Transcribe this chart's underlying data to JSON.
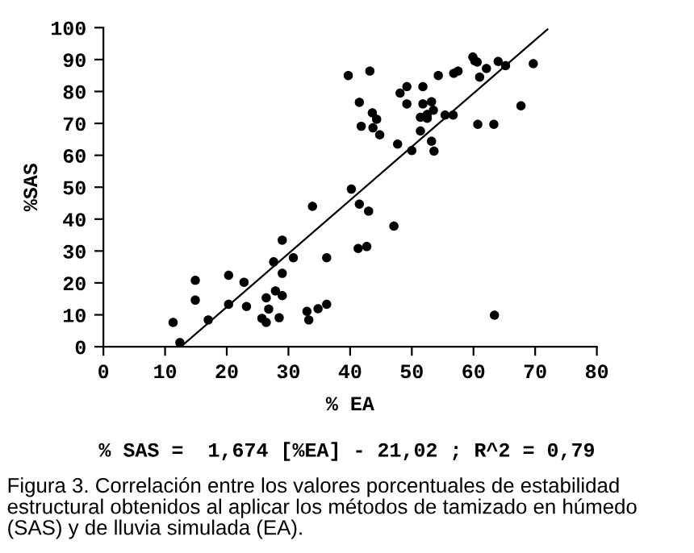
{
  "chart_data": {
    "type": "scatter",
    "xlabel": "% EA",
    "ylabel": "%SAS",
    "xlim": [
      0,
      80
    ],
    "xticks": [
      0,
      10,
      20,
      30,
      40,
      50,
      60,
      70,
      80
    ],
    "ylim": [
      0,
      100
    ],
    "yticks": [
      0,
      10,
      20,
      30,
      40,
      50,
      60,
      70,
      80,
      90,
      100
    ],
    "grid": false,
    "legend": false,
    "marker": "circle",
    "series": [
      {
        "color": "#000000",
        "x": [
          11.3,
          12.4,
          14.9,
          14.9,
          17.0,
          20.3,
          20.3,
          22.8,
          23.2,
          25.7,
          26.4,
          26.4,
          26.8,
          27.6,
          27.9,
          28.5,
          29.0,
          29.0,
          29.0,
          30.8,
          33.0,
          33.3,
          33.9,
          34.8,
          36.2,
          36.2,
          39.7,
          40.2,
          41.5,
          41.5,
          41.3,
          41.8,
          42.7,
          43.0,
          43.2,
          43.6,
          43.7,
          44.3,
          44.8,
          47.1,
          47.7,
          48.1,
          49.2,
          49.2,
          50.0,
          51.4,
          51.4,
          51.8,
          51.8,
          52.5,
          52.5,
          53.2,
          53.5,
          53.2,
          53.6,
          54.3,
          55.4,
          56.7,
          56.8,
          57.5,
          59.9,
          60.2,
          60.6,
          60.7,
          61.0,
          62.1,
          63.3,
          63.4,
          64.0,
          65.2,
          67.7,
          69.7
        ],
        "values": [
          7.6,
          1.3,
          20.8,
          14.6,
          8.4,
          22.4,
          13.3,
          20.2,
          12.6,
          8.9,
          7.6,
          15.3,
          11.8,
          26.6,
          17.5,
          9.1,
          16.0,
          23.0,
          33.4,
          27.9,
          11.1,
          8.4,
          44.0,
          11.9,
          27.9,
          13.3,
          85.0,
          49.4,
          76.6,
          44.7,
          30.8,
          69.1,
          31.4,
          42.5,
          86.4,
          73.3,
          68.6,
          71.3,
          66.4,
          37.8,
          63.5,
          79.5,
          81.5,
          76.1,
          61.5,
          67.6,
          71.9,
          81.5,
          76.1,
          72.8,
          71.6,
          76.8,
          74.1,
          64.4,
          61.3,
          85.0,
          72.6,
          72.6,
          85.7,
          86.4,
          90.8,
          89.6,
          89.2,
          69.7,
          84.5,
          87.2,
          69.7,
          9.9,
          89.4,
          88.1,
          75.5,
          88.7
        ]
      },
      {
        "type": "line",
        "color": "#000000",
        "marker": "none",
        "x": [
          12.56,
          72.0
        ],
        "values": [
          0,
          99.5
        ]
      }
    ],
    "annotations": [
      "% SAS =  1,674 [%EA] - 21,02 ; R^2 = 0,79",
      "Figura 3. Correlación entre los valores porcentuales de estabilidad estructural obtenidos al aplicar los métodos de tamizado en húmedo (SAS) y de lluvia simulada (EA)."
    ]
  }
}
